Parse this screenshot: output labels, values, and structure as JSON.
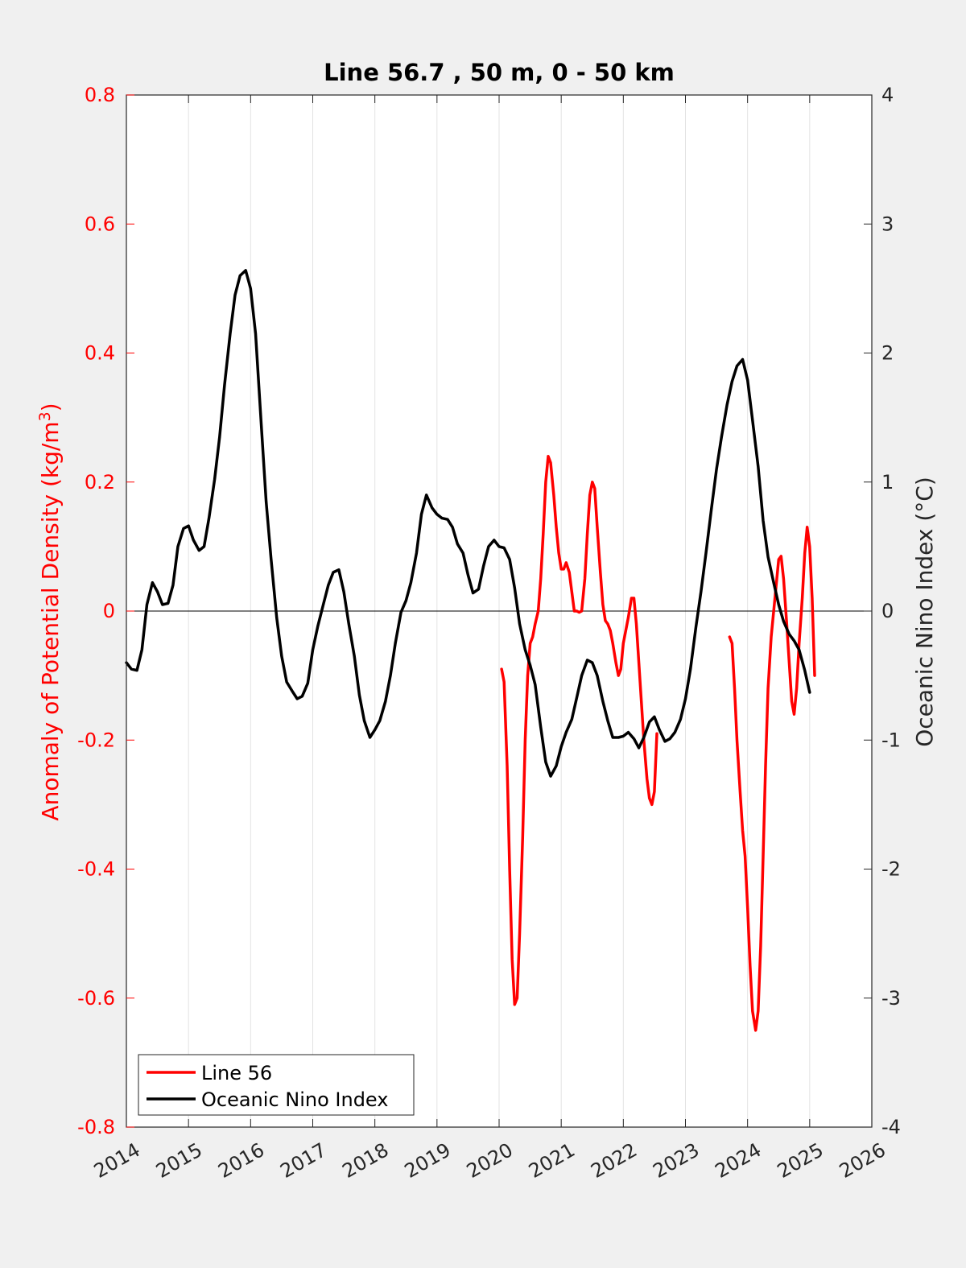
{
  "chart_data": {
    "type": "line",
    "title": "Line 56.7 , 50 m, 0 - 50 km",
    "ylabel_left": "Anomaly of Potential Density (kg/m",
    "ylabel_left_sup": "3",
    "ylabel_left_close": ")",
    "ylabel_right": "Oceanic Nino Index (°C)",
    "xlim": [
      2014,
      2026
    ],
    "ylim_left": [
      -0.8,
      0.8
    ],
    "ylim_right": [
      -4,
      4
    ],
    "grid": "vertical",
    "legend_location": "bottom-left",
    "x_ticks": [
      "2014",
      "2015",
      "2016",
      "2017",
      "2018",
      "2019",
      "2020",
      "2021",
      "2022",
      "2023",
      "2024",
      "2025",
      "2026"
    ],
    "left_ticks": [
      "0.8",
      "0.6",
      "0.4",
      "0.2",
      "0",
      "-0.2",
      "-0.4",
      "-0.6",
      "-0.8"
    ],
    "right_ticks": [
      "4",
      "3",
      "2",
      "1",
      "0",
      "-1",
      "-2",
      "-3",
      "-4"
    ],
    "colors": {
      "line56": "#ff0000",
      "oni": "#000000",
      "left_axis": "#ff0000",
      "right_axis": "#262626"
    },
    "series": [
      {
        "name": "Line 56",
        "axis": "left",
        "segments": [
          [
            [
              2020.04,
              -0.09
            ],
            [
              2020.08,
              -0.11
            ],
            [
              2020.13,
              -0.24
            ],
            [
              2020.17,
              -0.4
            ],
            [
              2020.21,
              -0.54
            ],
            [
              2020.25,
              -0.61
            ],
            [
              2020.29,
              -0.6
            ],
            [
              2020.33,
              -0.5
            ],
            [
              2020.38,
              -0.35
            ],
            [
              2020.42,
              -0.2
            ],
            [
              2020.46,
              -0.1
            ],
            [
              2020.5,
              -0.05
            ],
            [
              2020.54,
              -0.04
            ],
            [
              2020.58,
              -0.02
            ],
            [
              2020.63,
              0.0
            ],
            [
              2020.67,
              0.05
            ],
            [
              2020.71,
              0.12
            ],
            [
              2020.75,
              0.2
            ],
            [
              2020.79,
              0.24
            ],
            [
              2020.83,
              0.23
            ],
            [
              2020.88,
              0.18
            ],
            [
              2020.92,
              0.13
            ],
            [
              2020.96,
              0.09
            ],
            [
              2021.0,
              0.065
            ],
            [
              2021.04,
              0.065
            ],
            [
              2021.08,
              0.075
            ],
            [
              2021.13,
              0.06
            ],
            [
              2021.17,
              0.03
            ],
            [
              2021.21,
              0.0
            ],
            [
              2021.25,
              0.0
            ],
            [
              2021.29,
              -0.002
            ],
            [
              2021.33,
              0.0
            ],
            [
              2021.38,
              0.05
            ],
            [
              2021.42,
              0.12
            ],
            [
              2021.46,
              0.18
            ],
            [
              2021.5,
              0.2
            ],
            [
              2021.54,
              0.19
            ],
            [
              2021.58,
              0.13
            ],
            [
              2021.63,
              0.06
            ],
            [
              2021.67,
              0.01
            ],
            [
              2021.71,
              -0.015
            ],
            [
              2021.75,
              -0.02
            ],
            [
              2021.79,
              -0.03
            ],
            [
              2021.83,
              -0.05
            ],
            [
              2021.88,
              -0.08
            ],
            [
              2021.92,
              -0.1
            ],
            [
              2021.96,
              -0.09
            ],
            [
              2022.0,
              -0.05
            ],
            [
              2022.04,
              -0.03
            ],
            [
              2022.08,
              -0.01
            ],
            [
              2022.13,
              0.02
            ],
            [
              2022.17,
              0.02
            ],
            [
              2022.21,
              -0.02
            ],
            [
              2022.25,
              -0.08
            ],
            [
              2022.29,
              -0.14
            ],
            [
              2022.33,
              -0.2
            ],
            [
              2022.38,
              -0.26
            ],
            [
              2022.42,
              -0.29
            ],
            [
              2022.46,
              -0.3
            ],
            [
              2022.5,
              -0.28
            ],
            [
              2022.54,
              -0.19
            ]
          ],
          [
            [
              2023.71,
              -0.04
            ],
            [
              2023.75,
              -0.05
            ],
            [
              2023.79,
              -0.12
            ],
            [
              2023.83,
              -0.2
            ],
            [
              2023.88,
              -0.28
            ],
            [
              2023.92,
              -0.34
            ],
            [
              2023.96,
              -0.38
            ],
            [
              2024.0,
              -0.46
            ],
            [
              2024.04,
              -0.55
            ],
            [
              2024.08,
              -0.62
            ],
            [
              2024.13,
              -0.65
            ],
            [
              2024.17,
              -0.62
            ],
            [
              2024.21,
              -0.52
            ],
            [
              2024.25,
              -0.38
            ],
            [
              2024.29,
              -0.24
            ],
            [
              2024.33,
              -0.12
            ],
            [
              2024.38,
              -0.04
            ],
            [
              2024.42,
              0.0
            ],
            [
              2024.46,
              0.04
            ],
            [
              2024.5,
              0.08
            ],
            [
              2024.54,
              0.085
            ],
            [
              2024.58,
              0.05
            ],
            [
              2024.63,
              -0.02
            ],
            [
              2024.67,
              -0.08
            ],
            [
              2024.71,
              -0.14
            ],
            [
              2024.75,
              -0.16
            ],
            [
              2024.79,
              -0.12
            ],
            [
              2024.83,
              -0.05
            ],
            [
              2024.88,
              0.02
            ],
            [
              2024.92,
              0.09
            ],
            [
              2024.96,
              0.13
            ],
            [
              2025.0,
              0.1
            ],
            [
              2025.04,
              0.02
            ],
            [
              2025.08,
              -0.1
            ]
          ]
        ]
      },
      {
        "name": "Oceanic Nino Index",
        "axis": "right",
        "points": [
          [
            2014.0,
            -0.4
          ],
          [
            2014.08,
            -0.45
          ],
          [
            2014.17,
            -0.46
          ],
          [
            2014.25,
            -0.3
          ],
          [
            2014.33,
            0.05
          ],
          [
            2014.42,
            0.22
          ],
          [
            2014.5,
            0.15
          ],
          [
            2014.58,
            0.05
          ],
          [
            2014.67,
            0.06
          ],
          [
            2014.75,
            0.2
          ],
          [
            2014.83,
            0.5
          ],
          [
            2014.92,
            0.64
          ],
          [
            2015.0,
            0.66
          ],
          [
            2015.08,
            0.55
          ],
          [
            2015.17,
            0.47
          ],
          [
            2015.25,
            0.5
          ],
          [
            2015.33,
            0.72
          ],
          [
            2015.42,
            1.02
          ],
          [
            2015.5,
            1.35
          ],
          [
            2015.58,
            1.75
          ],
          [
            2015.67,
            2.15
          ],
          [
            2015.75,
            2.45
          ],
          [
            2015.83,
            2.6
          ],
          [
            2015.92,
            2.64
          ],
          [
            2016.0,
            2.5
          ],
          [
            2016.08,
            2.15
          ],
          [
            2016.17,
            1.45
          ],
          [
            2016.25,
            0.85
          ],
          [
            2016.33,
            0.4
          ],
          [
            2016.42,
            -0.05
          ],
          [
            2016.5,
            -0.35
          ],
          [
            2016.58,
            -0.55
          ],
          [
            2016.67,
            -0.62
          ],
          [
            2016.75,
            -0.68
          ],
          [
            2016.83,
            -0.66
          ],
          [
            2016.92,
            -0.56
          ],
          [
            2017.0,
            -0.3
          ],
          [
            2017.08,
            -0.12
          ],
          [
            2017.17,
            0.05
          ],
          [
            2017.25,
            0.2
          ],
          [
            2017.33,
            0.3
          ],
          [
            2017.42,
            0.32
          ],
          [
            2017.5,
            0.15
          ],
          [
            2017.58,
            -0.1
          ],
          [
            2017.67,
            -0.35
          ],
          [
            2017.75,
            -0.65
          ],
          [
            2017.83,
            -0.85
          ],
          [
            2017.92,
            -0.98
          ],
          [
            2018.0,
            -0.92
          ],
          [
            2018.08,
            -0.85
          ],
          [
            2018.17,
            -0.7
          ],
          [
            2018.25,
            -0.5
          ],
          [
            2018.33,
            -0.25
          ],
          [
            2018.42,
            -0.01
          ],
          [
            2018.5,
            0.08
          ],
          [
            2018.58,
            0.22
          ],
          [
            2018.67,
            0.45
          ],
          [
            2018.75,
            0.75
          ],
          [
            2018.83,
            0.9
          ],
          [
            2018.92,
            0.8
          ],
          [
            2019.0,
            0.75
          ],
          [
            2019.08,
            0.72
          ],
          [
            2019.17,
            0.71
          ],
          [
            2019.25,
            0.65
          ],
          [
            2019.33,
            0.52
          ],
          [
            2019.42,
            0.45
          ],
          [
            2019.5,
            0.28
          ],
          [
            2019.58,
            0.14
          ],
          [
            2019.67,
            0.17
          ],
          [
            2019.75,
            0.35
          ],
          [
            2019.83,
            0.5
          ],
          [
            2019.92,
            0.55
          ],
          [
            2020.0,
            0.5
          ],
          [
            2020.08,
            0.49
          ],
          [
            2020.17,
            0.4
          ],
          [
            2020.25,
            0.18
          ],
          [
            2020.33,
            -0.1
          ],
          [
            2020.42,
            -0.3
          ],
          [
            2020.5,
            -0.42
          ],
          [
            2020.58,
            -0.57
          ],
          [
            2020.67,
            -0.9
          ],
          [
            2020.75,
            -1.17
          ],
          [
            2020.83,
            -1.28
          ],
          [
            2020.92,
            -1.2
          ],
          [
            2021.0,
            -1.05
          ],
          [
            2021.08,
            -0.94
          ],
          [
            2021.17,
            -0.84
          ],
          [
            2021.25,
            -0.67
          ],
          [
            2021.33,
            -0.5
          ],
          [
            2021.42,
            -0.38
          ],
          [
            2021.5,
            -0.4
          ],
          [
            2021.58,
            -0.5
          ],
          [
            2021.67,
            -0.7
          ],
          [
            2021.75,
            -0.85
          ],
          [
            2021.83,
            -0.98
          ],
          [
            2021.92,
            -0.98
          ],
          [
            2022.0,
            -0.97
          ],
          [
            2022.08,
            -0.94
          ],
          [
            2022.17,
            -0.99
          ],
          [
            2022.25,
            -1.06
          ],
          [
            2022.33,
            -0.98
          ],
          [
            2022.42,
            -0.86
          ],
          [
            2022.5,
            -0.82
          ],
          [
            2022.58,
            -0.92
          ],
          [
            2022.67,
            -1.01
          ],
          [
            2022.75,
            -0.99
          ],
          [
            2022.83,
            -0.94
          ],
          [
            2022.92,
            -0.84
          ],
          [
            2023.0,
            -0.68
          ],
          [
            2023.08,
            -0.45
          ],
          [
            2023.17,
            -0.12
          ],
          [
            2023.25,
            0.15
          ],
          [
            2023.33,
            0.45
          ],
          [
            2023.42,
            0.8
          ],
          [
            2023.5,
            1.1
          ],
          [
            2023.58,
            1.35
          ],
          [
            2023.67,
            1.6
          ],
          [
            2023.75,
            1.78
          ],
          [
            2023.83,
            1.9
          ],
          [
            2023.92,
            1.95
          ],
          [
            2024.0,
            1.79
          ],
          [
            2024.08,
            1.48
          ],
          [
            2024.17,
            1.12
          ],
          [
            2024.25,
            0.7
          ],
          [
            2024.33,
            0.42
          ],
          [
            2024.42,
            0.22
          ],
          [
            2024.5,
            0.05
          ],
          [
            2024.58,
            -0.08
          ],
          [
            2024.67,
            -0.18
          ],
          [
            2024.75,
            -0.23
          ],
          [
            2024.83,
            -0.3
          ],
          [
            2024.92,
            -0.46
          ],
          [
            2025.0,
            -0.63
          ]
        ]
      }
    ]
  }
}
